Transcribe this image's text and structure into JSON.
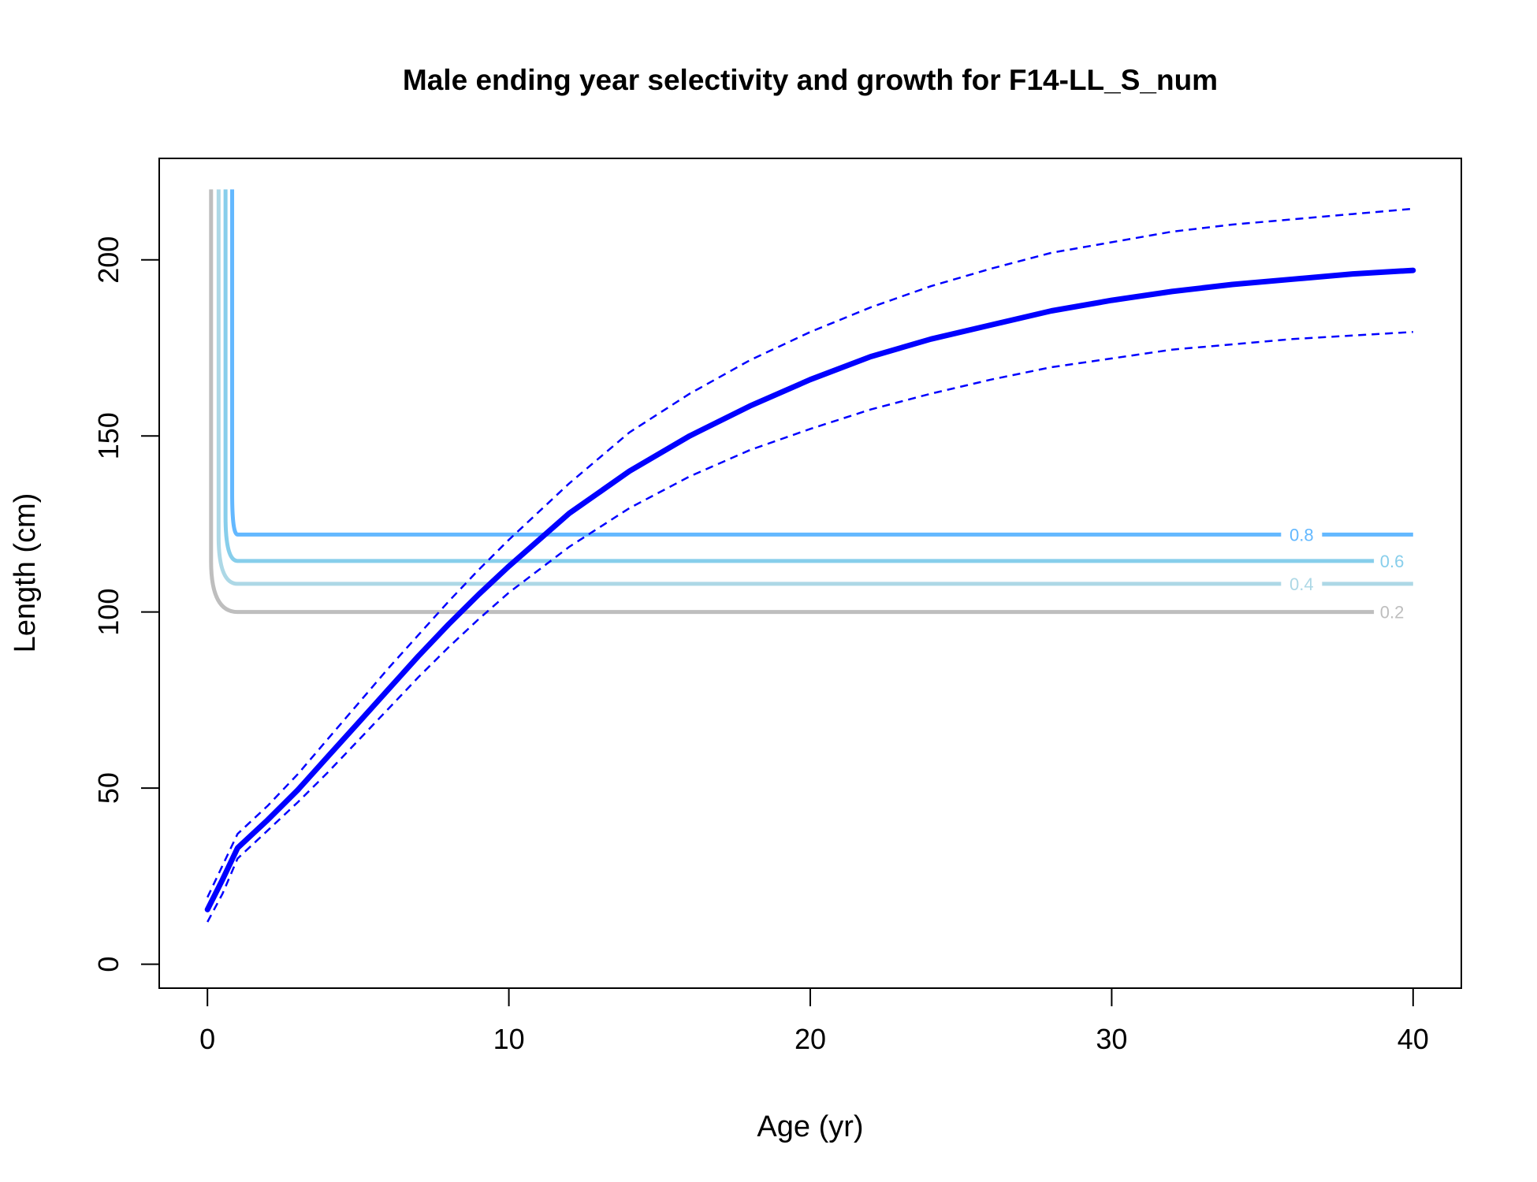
{
  "chart_data": {
    "type": "line",
    "title": "Male ending year selectivity and growth for F14-LL_S_num",
    "xlabel": "Age (yr)",
    "ylabel": "Length (cm)",
    "xlim": [
      -1.6,
      41.6
    ],
    "ylim": [
      -6.8,
      228.8
    ],
    "xticks": [
      0,
      10,
      20,
      30,
      40
    ],
    "yticks": [
      0,
      50,
      100,
      150,
      200
    ],
    "grid": false,
    "colors": {
      "growth": "#0000FF",
      "contour_0.2": "#BEBEBE",
      "contour_0.4": "#ADD8E6",
      "contour_0.6": "#87CEEB",
      "contour_0.8": "#63B8FF"
    },
    "growth": {
      "x": [
        0,
        0.5,
        1,
        2,
        3,
        4,
        5,
        6,
        7,
        8,
        9,
        10,
        12,
        14,
        16,
        18,
        20,
        22,
        24,
        26,
        28,
        30,
        32,
        34,
        36,
        38,
        40
      ],
      "mean": [
        15.5,
        24,
        33,
        41,
        49.5,
        59,
        68.5,
        78,
        87.5,
        96.5,
        105,
        113,
        128,
        140,
        150,
        158.5,
        166,
        172.5,
        177.5,
        181.5,
        185.5,
        188.5,
        191,
        193,
        194.5,
        196,
        197
      ],
      "lower": [
        12,
        20,
        30,
        38,
        46,
        54.5,
        63.5,
        72.5,
        81.5,
        90,
        98,
        105.5,
        118.5,
        129.5,
        138.5,
        146,
        152,
        157.5,
        162,
        166,
        169.5,
        172,
        174.5,
        176,
        177.5,
        178.5,
        179.5
      ],
      "upper": [
        19,
        28,
        37,
        45,
        54,
        64,
        74,
        84,
        93.5,
        103,
        112,
        120.5,
        136.5,
        151,
        162,
        171.5,
        179.5,
        186.5,
        192.5,
        197.5,
        202,
        205,
        208,
        210,
        211.5,
        213,
        214.5
      ]
    },
    "contours": [
      {
        "level": "0.2",
        "y": 100,
        "x_start": 0.12,
        "y_top": 220,
        "label_x": 39.3,
        "line_end": 38.7
      },
      {
        "level": "0.4",
        "y": 108,
        "x_start": 0.37,
        "y_top": 220,
        "label_x": 36.3,
        "line_end": 40
      },
      {
        "level": "0.6",
        "y": 114.5,
        "x_start": 0.6,
        "y_top": 220,
        "label_x": 39.3,
        "line_end": 38.7
      },
      {
        "level": "0.8",
        "y": 122,
        "x_start": 0.82,
        "y_top": 220,
        "label_x": 36.3,
        "line_end": 40
      }
    ]
  }
}
